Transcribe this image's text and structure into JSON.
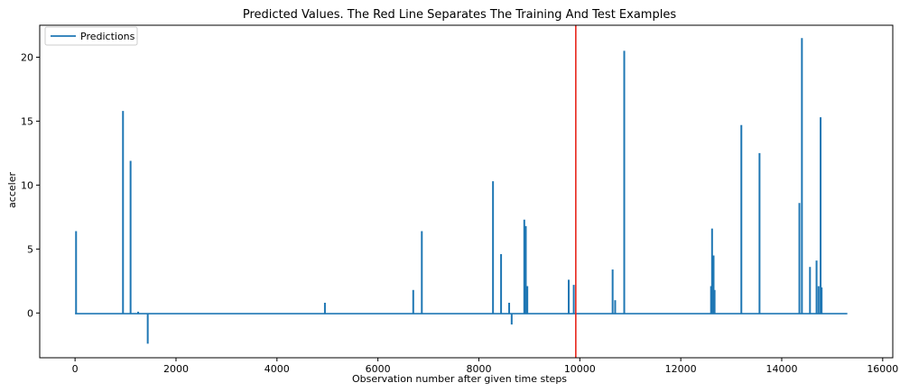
{
  "chart_data": {
    "type": "line",
    "title": "Predicted Values. The Red Line Separates The Training And Test Examples",
    "xlabel": "Observation number after given time steps",
    "ylabel": "acceler",
    "xlim": [
      -700,
      16200
    ],
    "ylim": [
      -3.5,
      22.5
    ],
    "xticks": [
      0,
      2000,
      4000,
      6000,
      8000,
      10000,
      12000,
      14000,
      16000
    ],
    "yticks": [
      0,
      5,
      10,
      15,
      20
    ],
    "grid": false,
    "legend": {
      "placement": "top-left",
      "entries": [
        "Predictions"
      ]
    },
    "vertical_line": {
      "x": 9920,
      "color": "#e8261c"
    },
    "baseline": -0.05,
    "x_end": 15300,
    "series": [
      {
        "name": "Predictions",
        "color": "#1f77b4",
        "spikes": [
          {
            "x": 20,
            "y": 6.4
          },
          {
            "x": 950,
            "y": 15.8
          },
          {
            "x": 1100,
            "y": 11.9
          },
          {
            "x": 1250,
            "y": 0.1
          },
          {
            "x": 1440,
            "y": -2.4
          },
          {
            "x": 4950,
            "y": 0.8
          },
          {
            "x": 6700,
            "y": 1.8
          },
          {
            "x": 6870,
            "y": 6.4
          },
          {
            "x": 8280,
            "y": 10.3
          },
          {
            "x": 8440,
            "y": 4.6
          },
          {
            "x": 8600,
            "y": 0.8
          },
          {
            "x": 8650,
            "y": -0.9
          },
          {
            "x": 8900,
            "y": 7.3
          },
          {
            "x": 8930,
            "y": 6.8
          },
          {
            "x": 8960,
            "y": 2.1
          },
          {
            "x": 9780,
            "y": 2.6
          },
          {
            "x": 9880,
            "y": 2.2
          },
          {
            "x": 10650,
            "y": 3.4
          },
          {
            "x": 10700,
            "y": 1.0
          },
          {
            "x": 10880,
            "y": 20.5
          },
          {
            "x": 12600,
            "y": 2.1
          },
          {
            "x": 12620,
            "y": 6.6
          },
          {
            "x": 12650,
            "y": 4.5
          },
          {
            "x": 12670,
            "y": 1.8
          },
          {
            "x": 13200,
            "y": 14.7
          },
          {
            "x": 13560,
            "y": 12.5
          },
          {
            "x": 14350,
            "y": 8.6
          },
          {
            "x": 14400,
            "y": 21.5
          },
          {
            "x": 14560,
            "y": 3.6
          },
          {
            "x": 14690,
            "y": 4.1
          },
          {
            "x": 14730,
            "y": 2.1
          },
          {
            "x": 14770,
            "y": 15.3
          },
          {
            "x": 14790,
            "y": 2.0
          }
        ]
      }
    ]
  }
}
